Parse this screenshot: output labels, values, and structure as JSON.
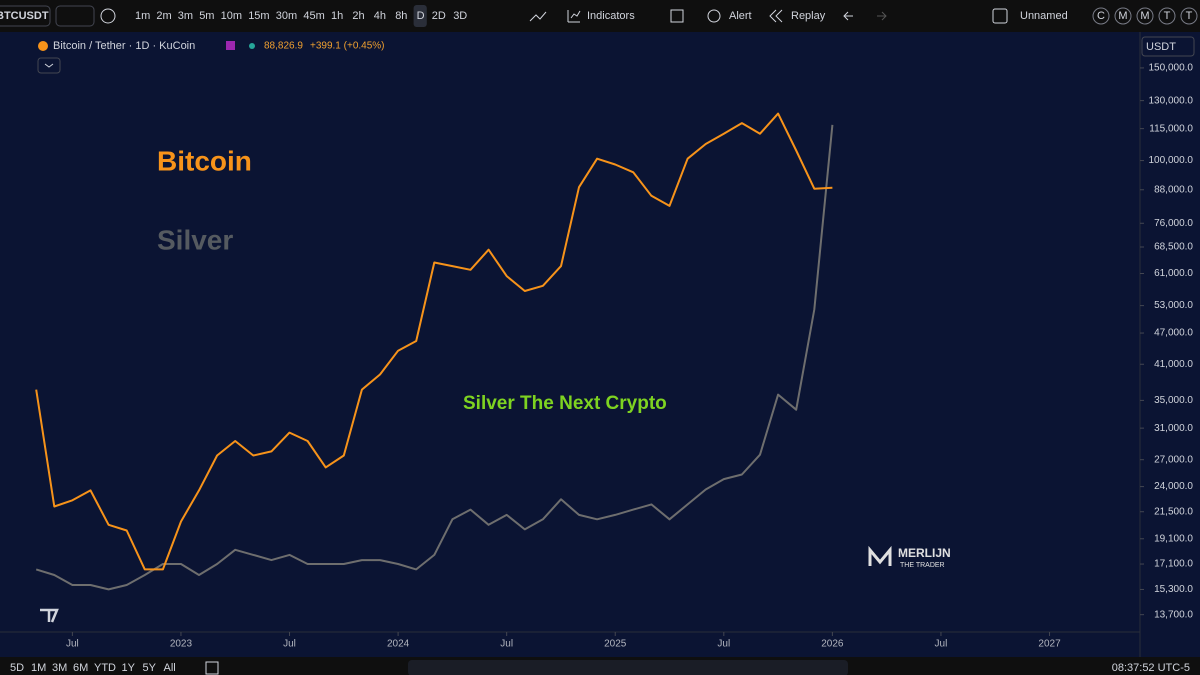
{
  "toolbar": {
    "symbol": "BTCUSDT",
    "intervals": [
      "1m",
      "2m",
      "3m",
      "5m",
      "10m",
      "15m",
      "30m",
      "45m",
      "1h",
      "2h",
      "4h",
      "8h",
      "D",
      "2D",
      "3D"
    ],
    "indicators": "Indicators",
    "alert": "Alert",
    "replay": "Replay",
    "layout_name": "Unnamed",
    "letters": [
      "C",
      "M",
      "M",
      "T",
      "T"
    ]
  },
  "bottom_bar": {
    "ranges": [
      "5D",
      "1M",
      "3M",
      "6M",
      "YTD",
      "1Y",
      "5Y",
      "All"
    ],
    "clock": "08:37:52 UTC-5"
  },
  "chart_data": {
    "type": "line",
    "title": "Bitcoin / Tether · 1D · KuCoin",
    "last_price": "88,826.9",
    "change": "+399.1 (+0.45%)",
    "currency": "USDT",
    "log_scale": true,
    "annotations": [
      {
        "text": "Bitcoin",
        "color": "#f7931a"
      },
      {
        "text": "Silver",
        "color": "#555a60"
      },
      {
        "text": "Silver The Next Crypto",
        "color": "#7ed321"
      }
    ],
    "watermark": [
      "MERLIJN",
      "THE TRADER"
    ],
    "x": [
      "2022-05",
      "2022-06",
      "2022-07",
      "2022-08",
      "2022-09",
      "2022-10",
      "2022-11",
      "2022-12",
      "2023-01",
      "2023-02",
      "2023-03",
      "2023-04",
      "2023-05",
      "2023-06",
      "2023-07",
      "2023-08",
      "2023-09",
      "2023-10",
      "2023-11",
      "2023-12",
      "2024-01",
      "2024-02",
      "2024-03",
      "2024-04",
      "2024-05",
      "2024-06",
      "2024-07",
      "2024-08",
      "2024-09",
      "2024-10",
      "2024-11",
      "2024-12",
      "2025-01",
      "2025-02",
      "2025-03",
      "2025-04",
      "2025-05",
      "2025-06",
      "2025-07",
      "2025-08",
      "2025-09",
      "2025-10",
      "2025-11",
      "2025-12",
      "2026-01"
    ],
    "series": [
      {
        "name": "Bitcoin",
        "color": "#f7931a",
        "values": [
          36700,
          22000,
          22600,
          23600,
          20300,
          19800,
          16700,
          16700,
          20600,
          23600,
          27500,
          29300,
          27500,
          28000,
          30400,
          29300,
          26100,
          27500,
          36700,
          39200,
          43500,
          45400,
          64000,
          63000,
          62000,
          67700,
          60300,
          56500,
          57800,
          63000,
          89000,
          100800,
          98300,
          95000,
          85700,
          82000,
          100800,
          107500,
          112500,
          117800,
          112500,
          122800,
          104500,
          88400,
          88800
        ]
      },
      {
        "name": "Silver",
        "color": "#6e6e6e",
        "values": [
          16700,
          16300,
          15600,
          15600,
          15300,
          15600,
          16300,
          17100,
          17100,
          16300,
          17100,
          18200,
          17800,
          17400,
          17800,
          17100,
          17100,
          17100,
          17400,
          17400,
          17100,
          16700,
          17800,
          20800,
          21700,
          20300,
          21200,
          19900,
          20800,
          22700,
          21200,
          20800,
          21200,
          21700,
          22200,
          20800,
          22200,
          23700,
          24800,
          25300,
          27600,
          35900,
          33600,
          52100,
          116900
        ]
      }
    ],
    "xlim": [
      "2022-03",
      "2027-06"
    ],
    "xticks": [
      {
        "value": "2022-07",
        "label": "Jul"
      },
      {
        "value": "2023-01",
        "label": "2023"
      },
      {
        "value": "2023-07",
        "label": "Jul"
      },
      {
        "value": "2024-01",
        "label": "2024"
      },
      {
        "value": "2024-07",
        "label": "Jul"
      },
      {
        "value": "2025-01",
        "label": "2025"
      },
      {
        "value": "2025-07",
        "label": "Jul"
      },
      {
        "value": "2026-01",
        "label": "2026"
      },
      {
        "value": "2026-07",
        "label": "Jul"
      },
      {
        "value": "2027-01",
        "label": "2027"
      }
    ],
    "ylim": [
      12700,
      171000
    ],
    "yticks": [
      {
        "value": 150000,
        "label": "150,000.0"
      },
      {
        "value": 130000,
        "label": "130,000.0"
      },
      {
        "value": 115000,
        "label": "115,000.0"
      },
      {
        "value": 100000,
        "label": "100,000.0"
      },
      {
        "value": 88000,
        "label": "88,000.0"
      },
      {
        "value": 76000,
        "label": "76,000.0"
      },
      {
        "value": 68500,
        "label": "68,500.0"
      },
      {
        "value": 61000,
        "label": "61,000.0"
      },
      {
        "value": 53000,
        "label": "53,000.0"
      },
      {
        "value": 47000,
        "label": "47,000.0"
      },
      {
        "value": 41000,
        "label": "41,000.0"
      },
      {
        "value": 35000,
        "label": "35,000.0"
      },
      {
        "value": 31000,
        "label": "31,000.0"
      },
      {
        "value": 27000,
        "label": "27,000.0"
      },
      {
        "value": 24000,
        "label": "24,000.0"
      },
      {
        "value": 21500,
        "label": "21,500.0"
      },
      {
        "value": 19100,
        "label": "19,100.0"
      },
      {
        "value": 17100,
        "label": "17,100.0"
      },
      {
        "value": 15300,
        "label": "15,300.0"
      },
      {
        "value": 13700,
        "label": "13,700.0"
      }
    ],
    "grid": false
  }
}
